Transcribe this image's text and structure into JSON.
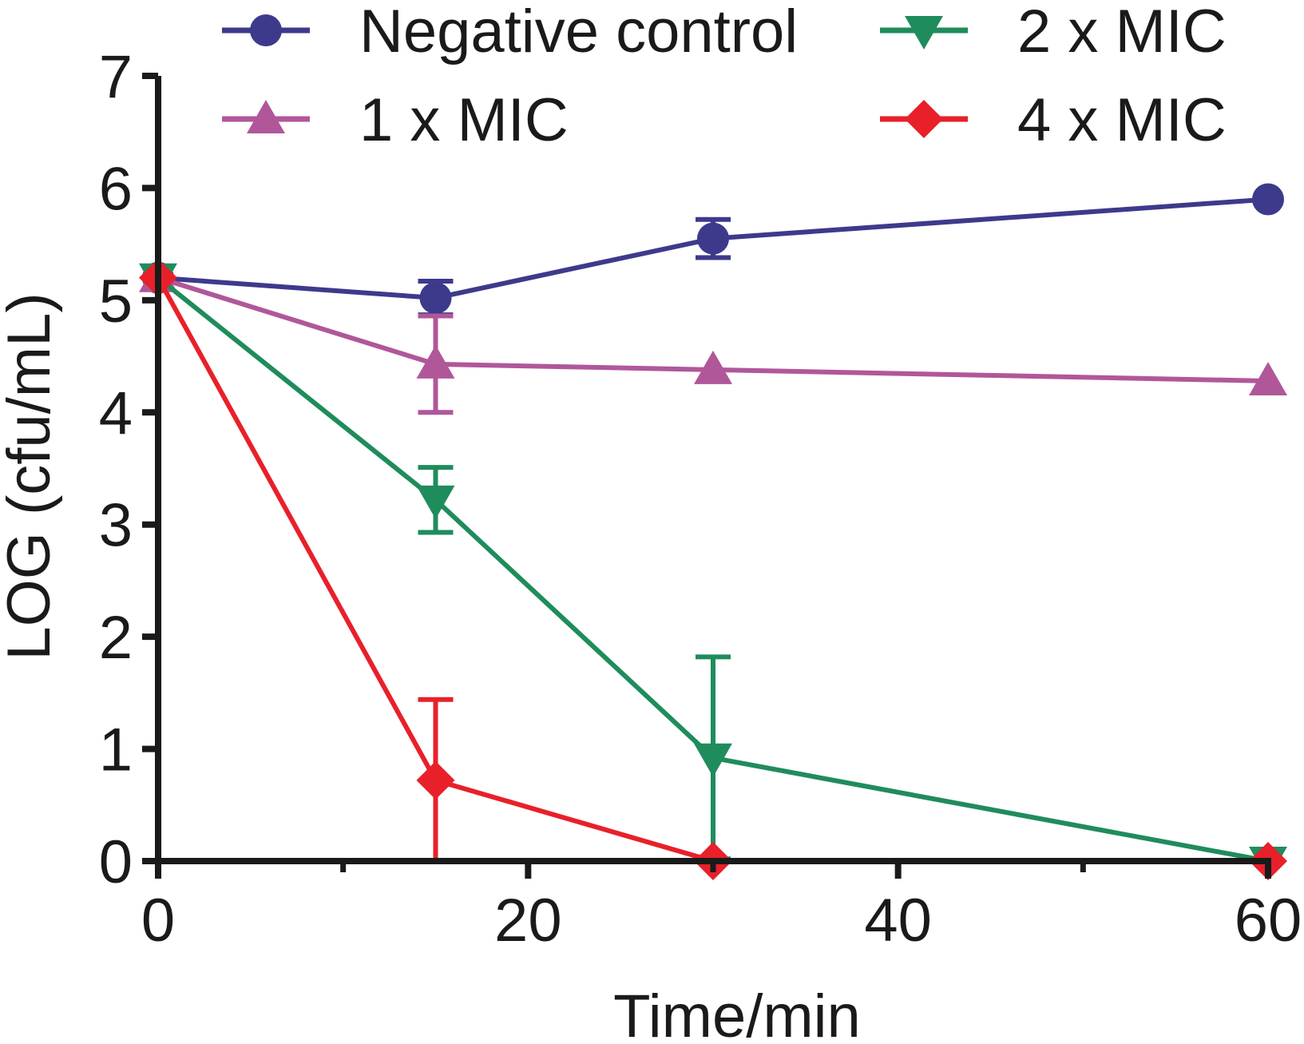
{
  "chart_data": {
    "type": "line",
    "title": "",
    "xlabel": "Time/min",
    "ylabel": "LOG (cfu/mL)",
    "xlim": [
      0,
      60
    ],
    "ylim": [
      0,
      7
    ],
    "x_ticks": [
      0,
      20,
      40,
      60
    ],
    "x_minor_ticks": [
      10,
      30,
      50
    ],
    "y_ticks": [
      0,
      1,
      2,
      3,
      4,
      5,
      6,
      7
    ],
    "grid": false,
    "legend_position": "top",
    "series": [
      {
        "name": "Negative control",
        "color": "#3d3a8c",
        "marker": "circle",
        "x": [
          0,
          15,
          30,
          60
        ],
        "values": [
          5.2,
          5.02,
          5.55,
          5.9
        ],
        "error": [
          0,
          0.15,
          0.17,
          0
        ]
      },
      {
        "name": "1 x MIC",
        "color": "#b0579a",
        "marker": "triangle-up",
        "x": [
          0,
          15,
          30,
          60
        ],
        "values": [
          5.2,
          4.43,
          4.38,
          4.28
        ],
        "error": [
          0,
          0.43,
          0,
          0
        ]
      },
      {
        "name": "2 x MIC",
        "color": "#1f8c5c",
        "marker": "triangle-down",
        "x": [
          0,
          15,
          30,
          60
        ],
        "values": [
          5.2,
          3.22,
          0.92,
          0
        ],
        "error": [
          0,
          0.29,
          0.9,
          0
        ]
      },
      {
        "name": "4 x MIC",
        "color": "#e8202a",
        "marker": "diamond",
        "x": [
          0,
          15,
          30,
          60
        ],
        "values": [
          5.2,
          0.72,
          0,
          0
        ],
        "error": [
          0,
          0.72,
          0,
          0
        ]
      }
    ]
  }
}
